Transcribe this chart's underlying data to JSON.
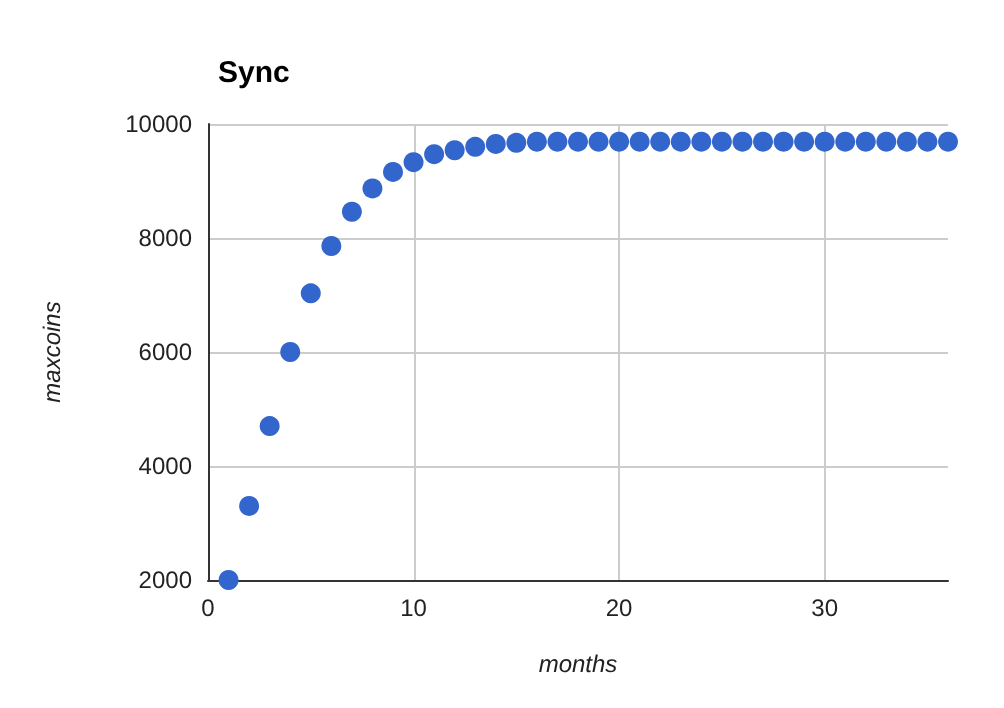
{
  "chart_data": {
    "type": "scatter",
    "title": "Sync",
    "xlabel": "months",
    "ylabel": "maxcoins",
    "x": [
      1,
      2,
      3,
      4,
      5,
      6,
      7,
      8,
      9,
      10,
      11,
      12,
      13,
      14,
      15,
      16,
      17,
      18,
      19,
      20,
      21,
      22,
      23,
      24,
      25,
      26,
      27,
      28,
      29,
      30,
      31,
      32,
      33,
      34,
      35,
      36
    ],
    "series": [
      {
        "color": "#3366cc",
        "values": [
          2000,
          3300,
          4700,
          6000,
          7030,
          7860,
          8460,
          8870,
          9160,
          9330,
          9470,
          9540,
          9600,
          9650,
          9670,
          9690,
          9690,
          9690,
          9690,
          9690,
          9690,
          9690,
          9690,
          9690,
          9690,
          9690,
          9690,
          9690,
          9690,
          9690,
          9690,
          9690,
          9690,
          9690,
          9690,
          9690
        ]
      }
    ],
    "xlim": [
      0,
      36
    ],
    "xticks": [
      0,
      10,
      20,
      30
    ],
    "ylim": [
      2000,
      10000
    ],
    "yticks": [
      2000,
      4000,
      6000,
      8000,
      10000
    ],
    "grid": true,
    "marker": "circle"
  }
}
